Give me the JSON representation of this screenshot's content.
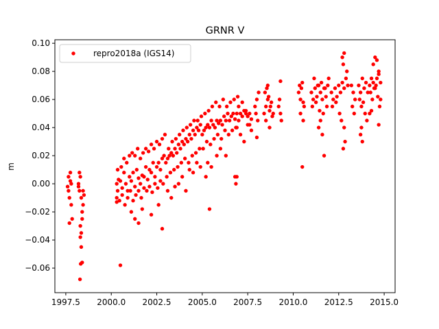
{
  "chart_data": {
    "type": "scatter",
    "title": "GRNR V",
    "xlabel": "",
    "ylabel": "m",
    "xlim": [
      1996.9,
      2015.6
    ],
    "ylim": [
      -0.0775,
      0.1025
    ],
    "xticks": [
      1997.5,
      2000.0,
      2002.5,
      2005.0,
      2007.5,
      2010.0,
      2012.5,
      2015.0
    ],
    "xtick_labels": [
      "1997.5",
      "2000.0",
      "2002.5",
      "2005.0",
      "2007.5",
      "2010.0",
      "2012.5",
      "2015.0"
    ],
    "yticks": [
      -0.06,
      -0.04,
      -0.02,
      0.0,
      0.02,
      0.04,
      0.06,
      0.08,
      0.1
    ],
    "ytick_labels": [
      "−0.06",
      "−0.04",
      "−0.02",
      "0.00",
      "0.02",
      "0.04",
      "0.06",
      "0.08",
      "0.10"
    ],
    "grid": false,
    "legend_position": "top-left",
    "series": [
      {
        "name": "repro2018a (IGS14)",
        "color": "#ff0000",
        "marker": "circle",
        "x": [
          1997.6,
          1997.65,
          1997.7,
          1997.75,
          1997.8,
          1997.85,
          1997.7,
          1997.75,
          1997.65,
          1997.8,
          1998.2,
          1998.25,
          1998.3,
          1998.35,
          1998.4,
          1998.45,
          1998.5,
          1998.3,
          1998.35,
          1998.4,
          1998.25,
          1998.2,
          1998.45,
          1998.3,
          1998.35,
          1998.4,
          1998.28,
          1998.32,
          2000.3,
          2000.35,
          2000.4,
          2000.5,
          2000.6,
          2000.7,
          2000.8,
          2000.9,
          2001.0,
          2001.1,
          2001.2,
          2001.3,
          2001.4,
          2001.5,
          2001.6,
          2001.7,
          2001.8,
          2001.9,
          2002.0,
          2002.1,
          2002.2,
          2002.3,
          2002.4,
          2002.5,
          2002.6,
          2002.7,
          2002.8,
          2002.9,
          2000.3,
          2000.45,
          2000.6,
          2000.75,
          2000.9,
          2001.05,
          2001.2,
          2001.35,
          2001.5,
          2001.65,
          2001.8,
          2001.95,
          2002.1,
          2002.25,
          2002.4,
          2002.55,
          2002.7,
          2002.85,
          2000.35,
          2000.55,
          2000.7,
          2000.85,
          2001.0,
          2001.15,
          2001.3,
          2001.45,
          2001.6,
          2001.75,
          2001.9,
          2002.05,
          2002.2,
          2002.35,
          2002.5,
          2002.65,
          2002.8,
          2002.95,
          2001.3,
          2001.5,
          2001.7,
          2002.2,
          2002.6,
          2002.8,
          2000.5,
          2001.1,
          2000.3,
          2003.0,
          2003.1,
          2003.2,
          2003.3,
          2003.4,
          2003.5,
          2003.6,
          2003.7,
          2003.8,
          2003.9,
          2004.0,
          2004.1,
          2004.2,
          2004.3,
          2004.4,
          2004.5,
          2004.6,
          2004.7,
          2004.8,
          2004.9,
          2003.05,
          2003.25,
          2003.45,
          2003.65,
          2003.85,
          2004.05,
          2004.25,
          2004.45,
          2004.65,
          2004.85,
          2003.15,
          2003.35,
          2003.55,
          2003.75,
          2003.95,
          2004.15,
          2004.35,
          2004.55,
          2004.75,
          2004.95,
          2003.1,
          2003.3,
          2003.5,
          2003.7,
          2003.9,
          2004.1,
          2004.3,
          2004.5,
          2004.7,
          2004.9,
          2005.0,
          2005.1,
          2005.2,
          2005.3,
          2005.4,
          2005.5,
          2005.6,
          2005.7,
          2005.8,
          2005.9,
          2006.0,
          2006.1,
          2006.2,
          2006.3,
          2006.4,
          2006.5,
          2006.6,
          2006.7,
          2006.8,
          2006.9,
          2005.05,
          2005.25,
          2005.45,
          2005.65,
          2005.85,
          2006.05,
          2006.25,
          2006.45,
          2006.65,
          2006.85,
          2005.15,
          2005.35,
          2005.55,
          2005.75,
          2005.95,
          2006.15,
          2006.35,
          2006.55,
          2006.75,
          2006.95,
          2005.3,
          2005.5,
          2005.8,
          2006.0,
          2006.3,
          2006.8,
          2005.4,
          2005.2,
          2007.0,
          2007.1,
          2007.2,
          2007.3,
          2007.4,
          2007.5,
          2007.6,
          2007.7,
          2007.0,
          2007.2,
          2007.4,
          2007.6,
          2006.9,
          2007.1,
          2007.3,
          2007.5,
          2007.7,
          2006.85,
          2006.9,
          2007.9,
          2008.0,
          2008.1,
          2007.95,
          2008.05,
          2008.0,
          2008.4,
          2008.5,
          2008.6,
          2008.7,
          2008.8,
          2008.9,
          2008.45,
          2008.55,
          2008.65,
          2008.75,
          2008.85,
          2008.5,
          2008.7,
          2008.6,
          2009.2,
          2009.25,
          2009.3,
          2009.35,
          2009.3,
          2010.3,
          2010.35,
          2010.4,
          2010.45,
          2010.5,
          2010.55,
          2010.6,
          2010.4,
          2010.5,
          2010.55,
          2011.0,
          2011.1,
          2011.2,
          2011.3,
          2011.4,
          2011.5,
          2011.6,
          2011.7,
          2011.8,
          2011.9,
          2011.05,
          2011.25,
          2011.45,
          2011.65,
          2011.85,
          2011.15,
          2011.35,
          2011.55,
          2011.75,
          2011.95,
          2011.5,
          2011.4,
          2011.6,
          2011.7,
          2012.1,
          2012.2,
          2012.3,
          2012.4,
          2012.5,
          2012.6,
          2012.7,
          2012.8,
          2012.9,
          2013.0,
          2012.15,
          2012.35,
          2012.55,
          2012.75,
          2012.95,
          2012.7,
          2012.8,
          2012.85,
          2012.75,
          2012.8,
          2012.65,
          2013.2,
          2013.3,
          2013.4,
          2013.25,
          2013.35,
          2013.6,
          2013.7,
          2013.8,
          2013.9,
          2014.0,
          2014.1,
          2013.65,
          2013.75,
          2013.85,
          2013.95,
          2014.05,
          2013.8,
          2013.7,
          2013.75,
          2014.2,
          2014.3,
          2014.4,
          2014.5,
          2014.6,
          2014.7,
          2014.8,
          2014.25,
          2014.35,
          2014.45,
          2014.55,
          2014.65,
          2014.75,
          2014.4,
          2014.5,
          2014.6,
          2014.7,
          2014.3,
          2014.2,
          2014.8,
          2014.7
        ],
        "y": [
          -0.002,
          0.005,
          -0.01,
          0.002,
          -0.015,
          -0.025,
          -0.028,
          0.008,
          -0.005,
          0.0,
          0.0,
          -0.005,
          0.005,
          -0.01,
          -0.02,
          -0.015,
          -0.008,
          -0.03,
          -0.035,
          -0.025,
          0.008,
          -0.002,
          -0.005,
          -0.038,
          -0.045,
          -0.056,
          -0.068,
          -0.057,
          0.0,
          -0.005,
          0.003,
          0.002,
          -0.003,
          0.008,
          0.0,
          -0.005,
          0.005,
          0.002,
          0.008,
          -0.002,
          0.01,
          0.004,
          0.0,
          0.006,
          0.005,
          0.012,
          0.003,
          0.01,
          0.008,
          0.015,
          0.005,
          0.012,
          0.015,
          0.01,
          0.018,
          0.02,
          -0.01,
          -0.012,
          -0.008,
          -0.015,
          -0.01,
          -0.005,
          -0.012,
          -0.008,
          -0.005,
          -0.01,
          -0.003,
          -0.005,
          -0.002,
          -0.006,
          0.0,
          -0.003,
          0.002,
          0.0,
          0.01,
          0.012,
          0.018,
          0.015,
          0.02,
          0.022,
          0.02,
          0.025,
          0.018,
          0.022,
          0.025,
          0.023,
          0.028,
          0.025,
          0.03,
          0.028,
          0.032,
          0.035,
          -0.025,
          -0.028,
          -0.018,
          -0.022,
          -0.015,
          -0.032,
          -0.058,
          -0.02,
          -0.013,
          0.015,
          0.018,
          0.02,
          0.022,
          0.02,
          0.025,
          0.022,
          0.028,
          0.025,
          0.03,
          0.028,
          0.032,
          0.03,
          0.035,
          0.032,
          0.038,
          0.035,
          0.04,
          0.038,
          0.042,
          0.005,
          0.008,
          0.01,
          0.012,
          0.015,
          0.018,
          0.015,
          0.02,
          0.022,
          0.025,
          0.025,
          0.03,
          0.032,
          0.035,
          0.038,
          0.04,
          0.042,
          0.045,
          0.045,
          0.048,
          -0.005,
          -0.01,
          -0.002,
          0.0,
          0.005,
          -0.005,
          0.01,
          0.008,
          0.015,
          0.012,
          0.035,
          0.038,
          0.04,
          0.042,
          0.04,
          0.045,
          0.042,
          0.04,
          0.045,
          0.043,
          0.045,
          0.042,
          0.048,
          0.045,
          0.05,
          0.045,
          0.048,
          0.05,
          0.046,
          0.05,
          0.025,
          0.03,
          0.028,
          0.032,
          0.035,
          0.032,
          0.038,
          0.035,
          0.038,
          0.04,
          0.05,
          0.052,
          0.055,
          0.058,
          0.055,
          0.06,
          0.055,
          0.058,
          0.06,
          0.062,
          0.015,
          0.012,
          0.02,
          0.025,
          0.02,
          0.005,
          -0.018,
          0.005,
          0.045,
          0.05,
          0.048,
          0.052,
          0.05,
          0.048,
          0.05,
          0.046,
          0.055,
          0.058,
          0.052,
          0.042,
          0.04,
          0.035,
          0.03,
          0.042,
          0.038,
          0.0,
          0.005,
          0.055,
          0.06,
          0.065,
          0.05,
          0.045,
          0.033,
          0.05,
          0.055,
          0.06,
          0.052,
          0.058,
          0.05,
          0.065,
          0.068,
          0.062,
          0.055,
          0.048,
          0.045,
          0.04,
          0.07,
          0.055,
          0.06,
          0.05,
          0.045,
          0.073,
          0.065,
          0.07,
          0.06,
          0.068,
          0.072,
          0.058,
          0.055,
          0.05,
          0.012,
          0.045,
          0.065,
          0.06,
          0.068,
          0.062,
          0.07,
          0.065,
          0.06,
          0.068,
          0.062,
          0.07,
          0.055,
          0.058,
          0.052,
          0.05,
          0.055,
          0.075,
          0.07,
          0.072,
          0.068,
          0.075,
          0.045,
          0.04,
          0.035,
          0.02,
          0.065,
          0.06,
          0.068,
          0.062,
          0.07,
          0.065,
          0.072,
          0.068,
          0.075,
          0.07,
          0.055,
          0.058,
          0.05,
          0.085,
          0.08,
          0.09,
          0.093,
          0.03,
          0.025,
          0.04,
          0.045,
          0.07,
          0.065,
          0.06,
          0.055,
          0.05,
          0.07,
          0.065,
          0.075,
          0.068,
          0.072,
          0.065,
          0.06,
          0.055,
          0.058,
          0.05,
          0.045,
          0.03,
          0.035,
          0.04,
          0.07,
          0.075,
          0.072,
          0.068,
          0.075,
          0.08,
          0.072,
          0.065,
          0.06,
          0.068,
          0.07,
          0.062,
          0.055,
          0.085,
          0.09,
          0.088,
          0.078,
          0.052,
          0.05,
          0.06,
          0.042
        ]
      }
    ]
  }
}
